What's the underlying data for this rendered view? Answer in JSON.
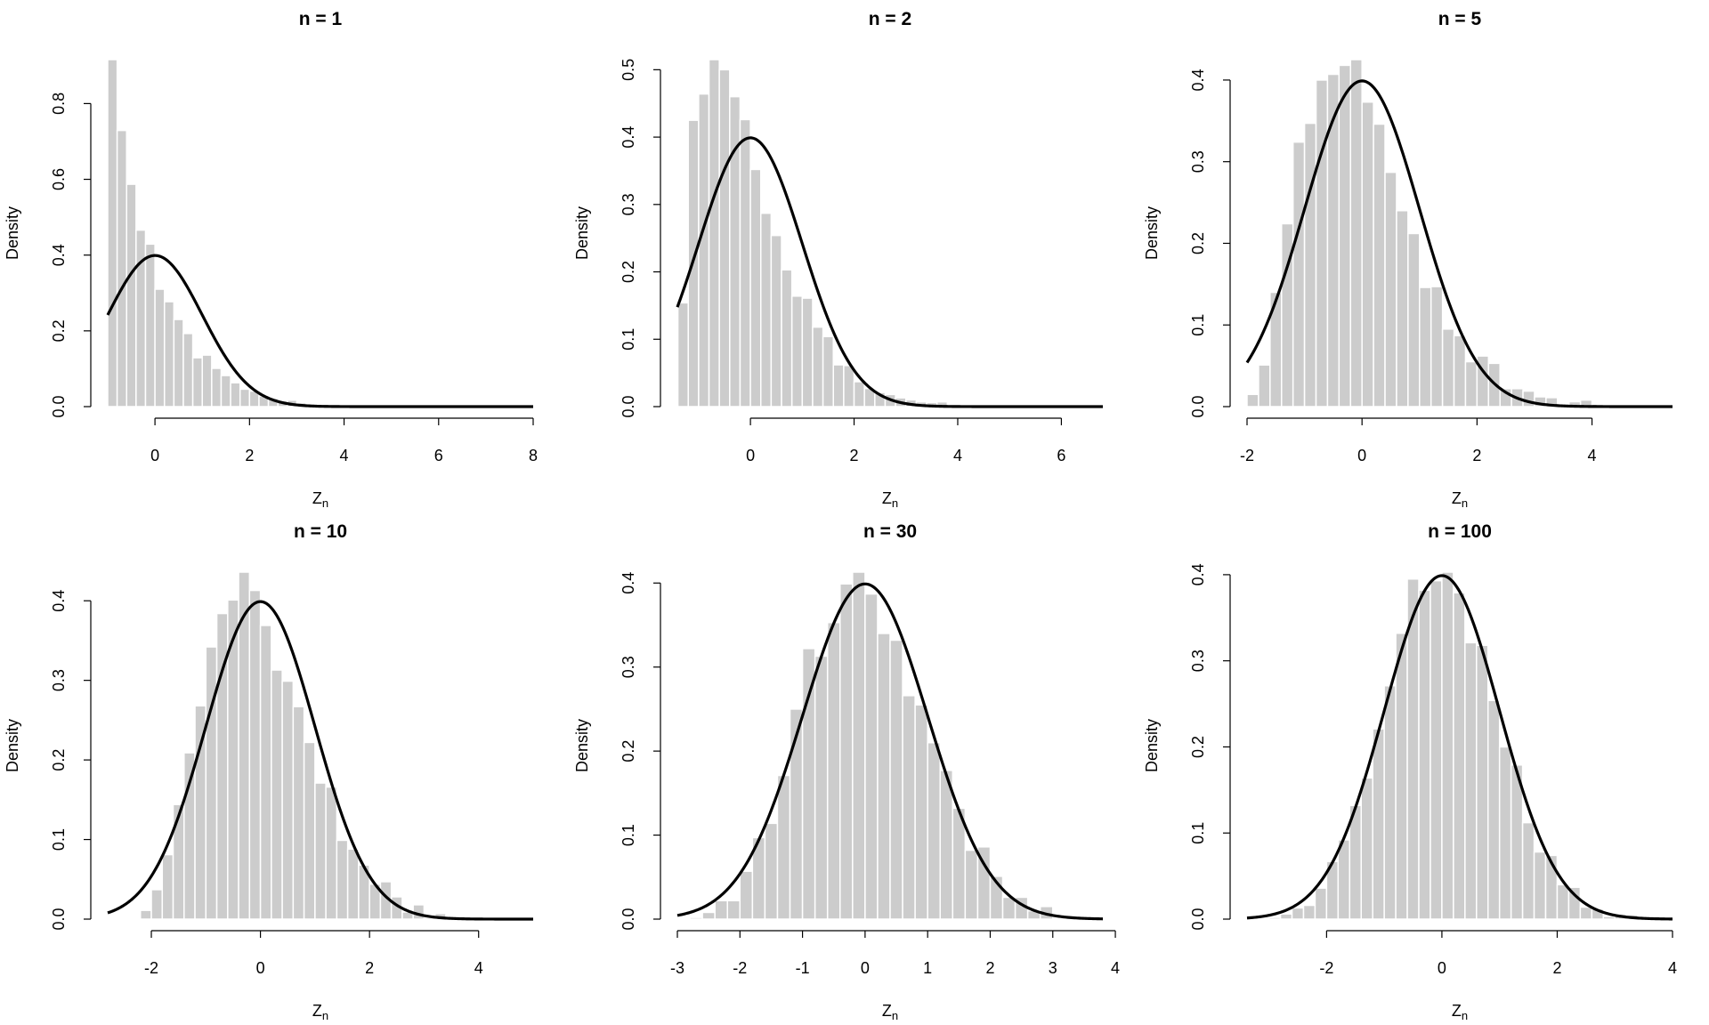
{
  "chart_data": [
    {
      "type": "bar",
      "title": "n = 1",
      "xlabel": "Z",
      "xlabel_sub": "n",
      "ylabel": "Density",
      "xlim": [
        -1,
        8
      ],
      "ylim": [
        0,
        0.916
      ],
      "xticks": [
        0,
        2,
        4,
        6,
        8
      ],
      "yticks": [
        "0.0",
        "0.2",
        "0.4",
        "0.6",
        "0.8"
      ],
      "bin_start": -1.0,
      "bin_width": 0.2,
      "values": [
        0.916,
        0.729,
        0.587,
        0.466,
        0.429,
        0.31,
        0.277,
        0.23,
        0.193,
        0.129,
        0.136,
        0.101,
        0.082,
        0.063,
        0.046,
        0.041,
        0.028,
        0.022,
        0.016,
        0.017,
        0.01,
        0.007,
        0.005,
        0.002,
        0.001
      ],
      "curve": "standard normal density"
    },
    {
      "type": "bar",
      "title": "n = 2",
      "xlabel": "Z",
      "xlabel_sub": "n",
      "ylabel": "Density",
      "xlim": [
        -1.41,
        6.8
      ],
      "ylim": [
        0,
        0.515
      ],
      "xticks": [
        0,
        2,
        4,
        6
      ],
      "yticks": [
        "0.0",
        "0.1",
        "0.2",
        "0.3",
        "0.4",
        "0.5"
      ],
      "bin_start": -1.4,
      "bin_width": 0.2,
      "values": [
        0.154,
        0.425,
        0.464,
        0.515,
        0.5,
        0.46,
        0.426,
        0.352,
        0.287,
        0.254,
        0.203,
        0.164,
        0.161,
        0.118,
        0.104,
        0.062,
        0.061,
        0.037,
        0.027,
        0.021,
        0.018,
        0.013,
        0.01,
        0.007,
        0.006,
        0.007
      ],
      "curve": "standard normal density"
    },
    {
      "type": "bar",
      "title": "n = 5",
      "xlabel": "Z",
      "xlabel_sub": "n",
      "ylabel": "Density",
      "xlim": [
        -2,
        5.4
      ],
      "ylim": [
        0,
        0.425
      ],
      "xticks": [
        -2,
        0,
        2,
        4
      ],
      "yticks": [
        "0.0",
        "0.1",
        "0.2",
        "0.3",
        "0.4"
      ],
      "bin_start": -2.0,
      "bin_width": 0.2,
      "values": [
        0.015,
        0.051,
        0.14,
        0.224,
        0.324,
        0.347,
        0.4,
        0.407,
        0.418,
        0.425,
        0.373,
        0.346,
        0.287,
        0.24,
        0.212,
        0.146,
        0.147,
        0.095,
        0.087,
        0.055,
        0.062,
        0.053,
        0.022,
        0.022,
        0.019,
        0.012,
        0.011,
        0.001,
        0.006,
        0.008,
        0.003
      ],
      "curve": "standard normal density"
    },
    {
      "type": "bar",
      "title": "n = 10",
      "xlabel": "Z",
      "xlabel_sub": "n",
      "ylabel": "Density",
      "xlim": [
        -2.8,
        5
      ],
      "ylim": [
        0,
        0.436
      ],
      "xticks": [
        -2,
        0,
        2,
        4
      ],
      "yticks": [
        "0.0",
        "0.1",
        "0.2",
        "0.3",
        "0.4"
      ],
      "bin_start": -2.4,
      "bin_width": 0.2,
      "values": [
        0.001,
        0.011,
        0.037,
        0.081,
        0.144,
        0.209,
        0.268,
        0.342,
        0.384,
        0.401,
        0.436,
        0.413,
        0.369,
        0.313,
        0.299,
        0.267,
        0.222,
        0.171,
        0.166,
        0.099,
        0.088,
        0.068,
        0.044,
        0.047,
        0.028,
        0.009,
        0.018,
        0.002,
        0.007,
        0.001,
        0.001,
        0.001,
        0.001
      ],
      "curve": "standard normal density"
    },
    {
      "type": "bar",
      "title": "n = 30",
      "xlabel": "Z",
      "xlabel_sub": "n",
      "ylabel": "Density",
      "xlim": [
        -3,
        3.8
      ],
      "ylim": [
        0,
        0.413
      ],
      "xticks": [
        -3,
        -2,
        -1,
        0,
        1,
        2,
        3,
        4
      ],
      "yticks": [
        "0.0",
        "0.1",
        "0.2",
        "0.3",
        "0.4"
      ],
      "bin_start": -2.8,
      "bin_width": 0.2,
      "values": [
        0.002,
        0.008,
        0.022,
        0.022,
        0.057,
        0.097,
        0.114,
        0.171,
        0.25,
        0.322,
        0.313,
        0.353,
        0.399,
        0.413,
        0.387,
        0.34,
        0.332,
        0.266,
        0.255,
        0.21,
        0.177,
        0.132,
        0.082,
        0.086,
        0.051,
        0.026,
        0.026,
        0.01,
        0.015,
        0.001
      ],
      "curve": "standard normal density"
    },
    {
      "type": "bar",
      "title": "n = 100",
      "xlabel": "Z",
      "xlabel_sub": "n",
      "ylabel": "Density",
      "xlim": [
        -3.38,
        4
      ],
      "ylim": [
        0,
        0.403
      ],
      "xticks": [
        -2,
        0,
        2,
        4
      ],
      "yticks": [
        "0.0",
        "0.1",
        "0.2",
        "0.3",
        "0.4"
      ],
      "bin_start": -3.0,
      "bin_width": 0.2,
      "values": [
        0.002,
        0.006,
        0.013,
        0.016,
        0.036,
        0.067,
        0.092,
        0.132,
        0.164,
        0.221,
        0.271,
        0.332,
        0.395,
        0.382,
        0.393,
        0.403,
        0.379,
        0.321,
        0.318,
        0.254,
        0.2,
        0.179,
        0.112,
        0.078,
        0.074,
        0.04,
        0.037,
        0.014,
        0.012,
        0.003,
        0.006,
        0.005
      ],
      "curve": "standard normal density"
    }
  ],
  "colors": {
    "bar": "#cccccc",
    "bar_border": "#ffffff",
    "curve": "#000000",
    "axis": "#000000"
  }
}
